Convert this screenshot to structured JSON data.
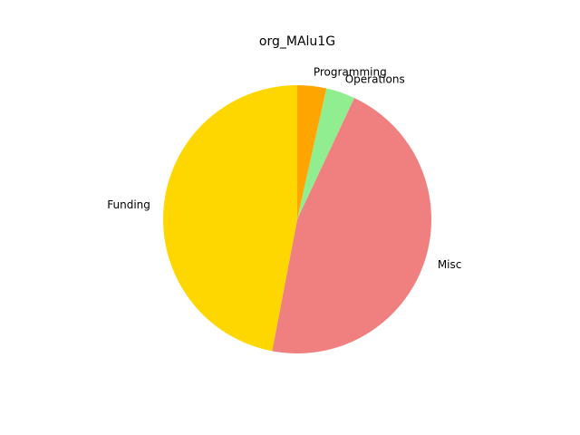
{
  "chart_data": {
    "type": "pie",
    "title": "org_MAlu1G",
    "slices": [
      {
        "label": "Programming",
        "value": 3.5,
        "color": "#FFA500"
      },
      {
        "label": "Operations",
        "value": 3.5,
        "color": "#90EE90"
      },
      {
        "label": "Misc",
        "value": 46.0,
        "color": "#F08080"
      },
      {
        "label": "Funding",
        "value": 47.0,
        "color": "#FFD700"
      }
    ],
    "start_angle_deg": 90,
    "direction": "clockwise"
  }
}
